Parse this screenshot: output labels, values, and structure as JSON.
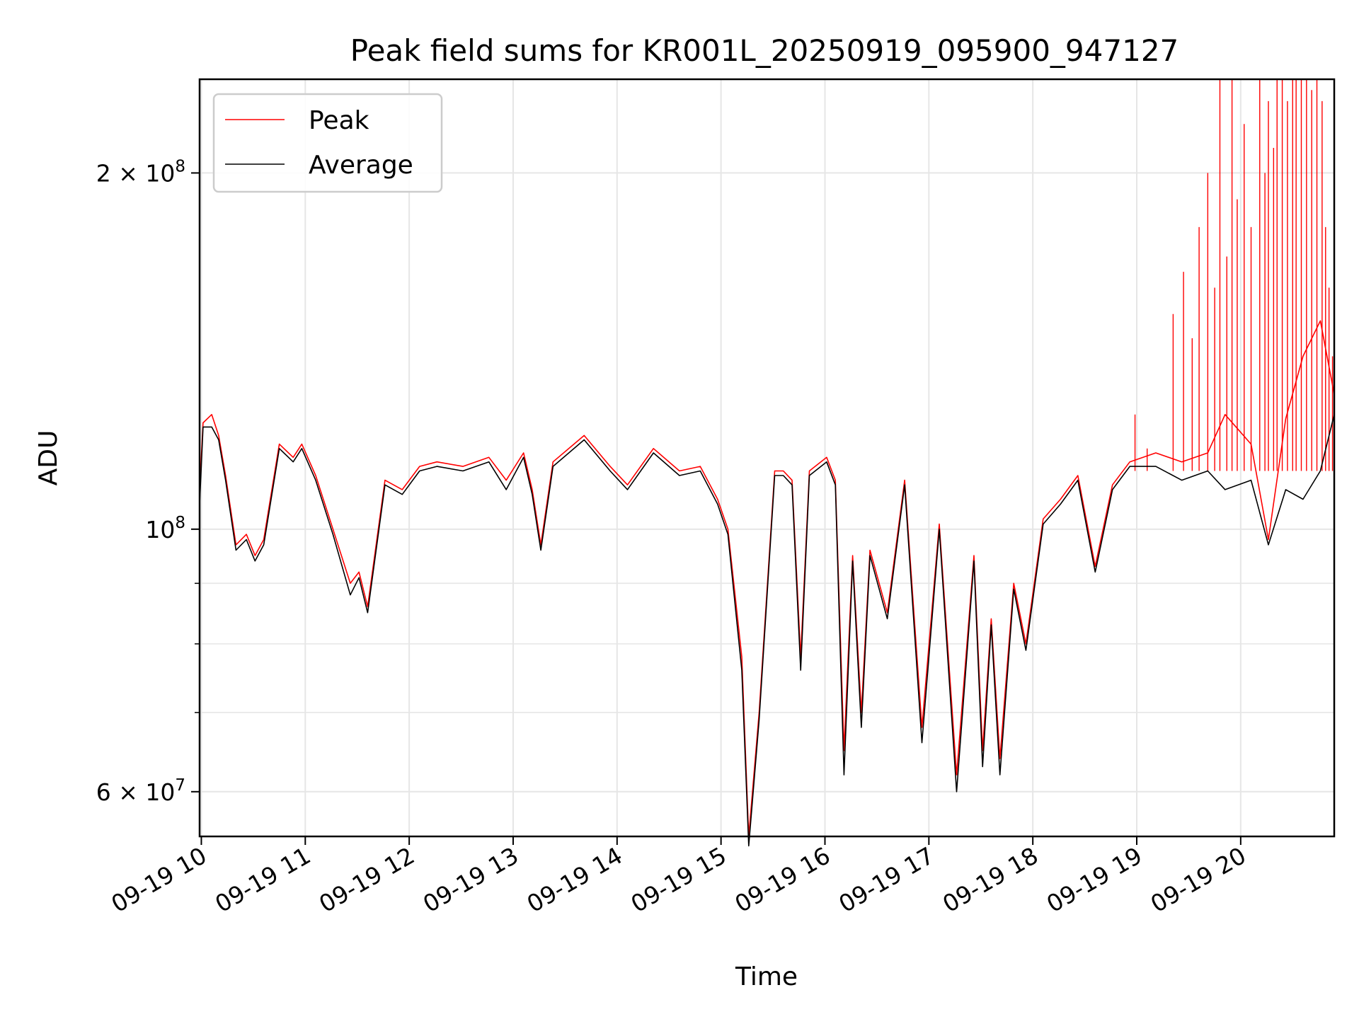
{
  "chart_data": {
    "type": "line",
    "title": "Peak field sums for KR001L_20250919_095900_947127",
    "xlabel": "Time",
    "ylabel": "ADU",
    "x_axis_type": "datetime",
    "x_range": [
      "2025-09-19 09:59",
      "2025-09-19 20:54"
    ],
    "y_scale": "log",
    "ylim": [
      55000000,
      240000000
    ],
    "grid": true,
    "legend_position": "upper-left",
    "x_tick_labels": [
      "09-19 10",
      "09-19 11",
      "09-19 12",
      "09-19 13",
      "09-19 14",
      "09-19 15",
      "09-19 16",
      "09-19 17",
      "09-19 18",
      "09-19 19",
      "09-19 20"
    ],
    "x_tick_times": [
      "2025-09-19 10:00",
      "2025-09-19 11:00",
      "2025-09-19 12:00",
      "2025-09-19 13:00",
      "2025-09-19 14:00",
      "2025-09-19 15:00",
      "2025-09-19 16:00",
      "2025-09-19 17:00",
      "2025-09-19 18:00",
      "2025-09-19 19:00",
      "2025-09-19 20:00"
    ],
    "y_major_ticks": [
      {
        "value": 60000000,
        "mantissa": "6",
        "base": "10",
        "exp": "7"
      },
      {
        "value": 100000000,
        "mantissa": "",
        "base": "10",
        "exp": "8"
      },
      {
        "value": 200000000,
        "mantissa": "2",
        "base": "10",
        "exp": "8"
      }
    ],
    "y_minor_ticks": [
      70000000,
      80000000,
      90000000
    ],
    "series": [
      {
        "name": "Peak",
        "color": "#ff0000",
        "points": [
          [
            "2025-09-19 09:59",
            108000000
          ],
          [
            "2025-09-19 10:01",
            123000000
          ],
          [
            "2025-09-19 10:06",
            125000000
          ],
          [
            "2025-09-19 10:10",
            120000000
          ],
          [
            "2025-09-19 10:14",
            111000000
          ],
          [
            "2025-09-19 10:20",
            97000000
          ],
          [
            "2025-09-19 10:26",
            99000000
          ],
          [
            "2025-09-19 10:31",
            95000000
          ],
          [
            "2025-09-19 10:36",
            98000000
          ],
          [
            "2025-09-19 10:45",
            118000000
          ],
          [
            "2025-09-19 10:53",
            115000000
          ],
          [
            "2025-09-19 10:58",
            118000000
          ],
          [
            "2025-09-19 11:06",
            111000000
          ],
          [
            "2025-09-19 11:16",
            100000000
          ],
          [
            "2025-09-19 11:26",
            90000000
          ],
          [
            "2025-09-19 11:31",
            92000000
          ],
          [
            "2025-09-19 11:36",
            86000000
          ],
          [
            "2025-09-19 11:46",
            110000000
          ],
          [
            "2025-09-19 11:56",
            108000000
          ],
          [
            "2025-09-19 12:06",
            113000000
          ],
          [
            "2025-09-19 12:16",
            114000000
          ],
          [
            "2025-09-19 12:31",
            113000000
          ],
          [
            "2025-09-19 12:46",
            115000000
          ],
          [
            "2025-09-19 12:56",
            110000000
          ],
          [
            "2025-09-19 13:06",
            116000000
          ],
          [
            "2025-09-19 13:11",
            108000000
          ],
          [
            "2025-09-19 13:16",
            97000000
          ],
          [
            "2025-09-19 13:23",
            114000000
          ],
          [
            "2025-09-19 13:41",
            120000000
          ],
          [
            "2025-09-19 13:56",
            113000000
          ],
          [
            "2025-09-19 14:06",
            109000000
          ],
          [
            "2025-09-19 14:21",
            117000000
          ],
          [
            "2025-09-19 14:36",
            112000000
          ],
          [
            "2025-09-19 14:48",
            113000000
          ],
          [
            "2025-09-19 14:58",
            106000000
          ],
          [
            "2025-09-19 15:04",
            100000000
          ],
          [
            "2025-09-19 15:12",
            78000000
          ],
          [
            "2025-09-19 15:16",
            55000000
          ],
          [
            "2025-09-19 15:22",
            70000000
          ],
          [
            "2025-09-19 15:31",
            112000000
          ],
          [
            "2025-09-19 15:36",
            112000000
          ],
          [
            "2025-09-19 15:41",
            110000000
          ],
          [
            "2025-09-19 15:46",
            78000000
          ],
          [
            "2025-09-19 15:51",
            112000000
          ],
          [
            "2025-09-19 16:01",
            115000000
          ],
          [
            "2025-09-19 16:06",
            110000000
          ],
          [
            "2025-09-19 16:11",
            65000000
          ],
          [
            "2025-09-19 16:16",
            95000000
          ],
          [
            "2025-09-19 16:21",
            70000000
          ],
          [
            "2025-09-19 16:26",
            96000000
          ],
          [
            "2025-09-19 16:36",
            85000000
          ],
          [
            "2025-09-19 16:46",
            110000000
          ],
          [
            "2025-09-19 16:56",
            68000000
          ],
          [
            "2025-09-19 17:06",
            101000000
          ],
          [
            "2025-09-19 17:16",
            62000000
          ],
          [
            "2025-09-19 17:26",
            95000000
          ],
          [
            "2025-09-19 17:31",
            65000000
          ],
          [
            "2025-09-19 17:36",
            84000000
          ],
          [
            "2025-09-19 17:41",
            64000000
          ],
          [
            "2025-09-19 17:49",
            90000000
          ],
          [
            "2025-09-19 17:56",
            80000000
          ],
          [
            "2025-09-19 18:06",
            102000000
          ],
          [
            "2025-09-19 18:16",
            106000000
          ],
          [
            "2025-09-19 18:26",
            111000000
          ],
          [
            "2025-09-19 18:36",
            93000000
          ],
          [
            "2025-09-19 18:46",
            109000000
          ],
          [
            "2025-09-19 18:56",
            114000000
          ],
          [
            "2025-09-19 19:11",
            116000000
          ],
          [
            "2025-09-19 19:26",
            114000000
          ],
          [
            "2025-09-19 19:41",
            116000000
          ],
          [
            "2025-09-19 19:51",
            125000000
          ],
          [
            "2025-09-19 20:06",
            118000000
          ],
          [
            "2025-09-19 20:16",
            98000000
          ],
          [
            "2025-09-19 20:26",
            124000000
          ],
          [
            "2025-09-19 20:36",
            140000000
          ],
          [
            "2025-09-19 20:46",
            150000000
          ],
          [
            "2025-09-19 20:54",
            130000000
          ]
        ],
        "spikes": [
          [
            "2025-09-19 18:59",
            125000000
          ],
          [
            "2025-09-19 19:06",
            117000000
          ],
          [
            "2025-09-19 19:21",
            152000000
          ],
          [
            "2025-09-19 19:27",
            165000000
          ],
          [
            "2025-09-19 19:32",
            145000000
          ],
          [
            "2025-09-19 19:36",
            180000000
          ],
          [
            "2025-09-19 19:41",
            200000000
          ],
          [
            "2025-09-19 19:45",
            160000000
          ],
          [
            "2025-09-19 19:48",
            240000000
          ],
          [
            "2025-09-19 19:52",
            170000000
          ],
          [
            "2025-09-19 19:55",
            240000000
          ],
          [
            "2025-09-19 19:58",
            190000000
          ],
          [
            "2025-09-19 20:02",
            220000000
          ],
          [
            "2025-09-19 20:06",
            180000000
          ],
          [
            "2025-09-19 20:11",
            240000000
          ],
          [
            "2025-09-19 20:14",
            200000000
          ],
          [
            "2025-09-19 20:16",
            230000000
          ],
          [
            "2025-09-19 20:19",
            210000000
          ],
          [
            "2025-09-19 20:21",
            240000000
          ],
          [
            "2025-09-19 20:24",
            240000000
          ],
          [
            "2025-09-19 20:27",
            230000000
          ],
          [
            "2025-09-19 20:30",
            240000000
          ],
          [
            "2025-09-19 20:32",
            240000000
          ],
          [
            "2025-09-19 20:35",
            240000000
          ],
          [
            "2025-09-19 20:38",
            240000000
          ],
          [
            "2025-09-19 20:41",
            235000000
          ],
          [
            "2025-09-19 20:44",
            240000000
          ],
          [
            "2025-09-19 20:47",
            230000000
          ],
          [
            "2025-09-19 20:49",
            180000000
          ],
          [
            "2025-09-19 20:51",
            160000000
          ],
          [
            "2025-09-19 20:53",
            140000000
          ]
        ]
      },
      {
        "name": "Average",
        "color": "#000000",
        "points": [
          [
            "2025-09-19 09:59",
            105000000
          ],
          [
            "2025-09-19 10:01",
            122000000
          ],
          [
            "2025-09-19 10:06",
            122000000
          ],
          [
            "2025-09-19 10:10",
            119000000
          ],
          [
            "2025-09-19 10:14",
            110000000
          ],
          [
            "2025-09-19 10:20",
            96000000
          ],
          [
            "2025-09-19 10:26",
            98000000
          ],
          [
            "2025-09-19 10:31",
            94000000
          ],
          [
            "2025-09-19 10:36",
            97000000
          ],
          [
            "2025-09-19 10:45",
            117000000
          ],
          [
            "2025-09-19 10:53",
            114000000
          ],
          [
            "2025-09-19 10:58",
            117000000
          ],
          [
            "2025-09-19 11:06",
            110000000
          ],
          [
            "2025-09-19 11:16",
            99000000
          ],
          [
            "2025-09-19 11:26",
            88000000
          ],
          [
            "2025-09-19 11:31",
            91000000
          ],
          [
            "2025-09-19 11:36",
            85000000
          ],
          [
            "2025-09-19 11:46",
            109000000
          ],
          [
            "2025-09-19 11:56",
            107000000
          ],
          [
            "2025-09-19 12:06",
            112000000
          ],
          [
            "2025-09-19 12:16",
            113000000
          ],
          [
            "2025-09-19 12:31",
            112000000
          ],
          [
            "2025-09-19 12:46",
            114000000
          ],
          [
            "2025-09-19 12:56",
            108000000
          ],
          [
            "2025-09-19 13:06",
            115000000
          ],
          [
            "2025-09-19 13:11",
            107000000
          ],
          [
            "2025-09-19 13:16",
            96000000
          ],
          [
            "2025-09-19 13:23",
            113000000
          ],
          [
            "2025-09-19 13:41",
            119000000
          ],
          [
            "2025-09-19 13:56",
            112000000
          ],
          [
            "2025-09-19 14:06",
            108000000
          ],
          [
            "2025-09-19 14:21",
            116000000
          ],
          [
            "2025-09-19 14:36",
            111000000
          ],
          [
            "2025-09-19 14:48",
            112000000
          ],
          [
            "2025-09-19 14:58",
            105000000
          ],
          [
            "2025-09-19 15:04",
            99000000
          ],
          [
            "2025-09-19 15:12",
            76000000
          ],
          [
            "2025-09-19 15:16",
            54000000
          ],
          [
            "2025-09-19 15:22",
            69000000
          ],
          [
            "2025-09-19 15:31",
            111000000
          ],
          [
            "2025-09-19 15:36",
            111000000
          ],
          [
            "2025-09-19 15:41",
            109000000
          ],
          [
            "2025-09-19 15:46",
            76000000
          ],
          [
            "2025-09-19 15:51",
            111000000
          ],
          [
            "2025-09-19 16:01",
            114000000
          ],
          [
            "2025-09-19 16:06",
            109000000
          ],
          [
            "2025-09-19 16:11",
            62000000
          ],
          [
            "2025-09-19 16:16",
            94000000
          ],
          [
            "2025-09-19 16:21",
            68000000
          ],
          [
            "2025-09-19 16:26",
            95000000
          ],
          [
            "2025-09-19 16:36",
            84000000
          ],
          [
            "2025-09-19 16:46",
            109000000
          ],
          [
            "2025-09-19 16:56",
            66000000
          ],
          [
            "2025-09-19 17:06",
            100000000
          ],
          [
            "2025-09-19 17:16",
            60000000
          ],
          [
            "2025-09-19 17:26",
            94000000
          ],
          [
            "2025-09-19 17:31",
            63000000
          ],
          [
            "2025-09-19 17:36",
            83000000
          ],
          [
            "2025-09-19 17:41",
            62000000
          ],
          [
            "2025-09-19 17:49",
            89000000
          ],
          [
            "2025-09-19 17:56",
            79000000
          ],
          [
            "2025-09-19 18:06",
            101000000
          ],
          [
            "2025-09-19 18:16",
            105000000
          ],
          [
            "2025-09-19 18:26",
            110000000
          ],
          [
            "2025-09-19 18:36",
            92000000
          ],
          [
            "2025-09-19 18:46",
            108000000
          ],
          [
            "2025-09-19 18:56",
            113000000
          ],
          [
            "2025-09-19 19:11",
            113000000
          ],
          [
            "2025-09-19 19:26",
            110000000
          ],
          [
            "2025-09-19 19:41",
            112000000
          ],
          [
            "2025-09-19 19:51",
            108000000
          ],
          [
            "2025-09-19 20:06",
            110000000
          ],
          [
            "2025-09-19 20:16",
            97000000
          ],
          [
            "2025-09-19 20:26",
            108000000
          ],
          [
            "2025-09-19 20:36",
            106000000
          ],
          [
            "2025-09-19 20:46",
            112000000
          ],
          [
            "2025-09-19 20:54",
            125000000
          ]
        ]
      }
    ]
  }
}
